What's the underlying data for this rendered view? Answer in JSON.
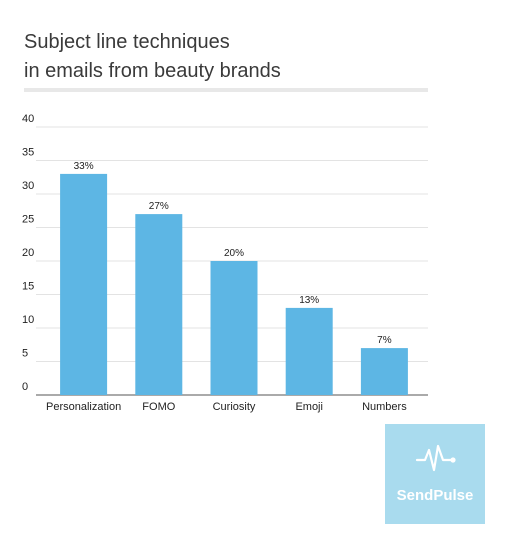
{
  "title_line1": "Subject line techniques",
  "title_line2": "in emails from beauty brands",
  "brand": {
    "name": "SendPulse",
    "bg_color": "#a9dbee",
    "icon": "pulse-icon"
  },
  "chart_data": {
    "type": "bar",
    "categories": [
      "Personalization",
      "FOMO",
      "Curiosity",
      "Emoji",
      "Numbers"
    ],
    "values": [
      33,
      27,
      20,
      13,
      7
    ],
    "data_labels": [
      "33%",
      "27%",
      "20%",
      "13%",
      "7%"
    ],
    "yticks": [
      0,
      5,
      10,
      15,
      20,
      25,
      30,
      35,
      40
    ],
    "ylim": [
      0,
      40
    ],
    "grid": true,
    "bar_color": "#5db6e4"
  }
}
